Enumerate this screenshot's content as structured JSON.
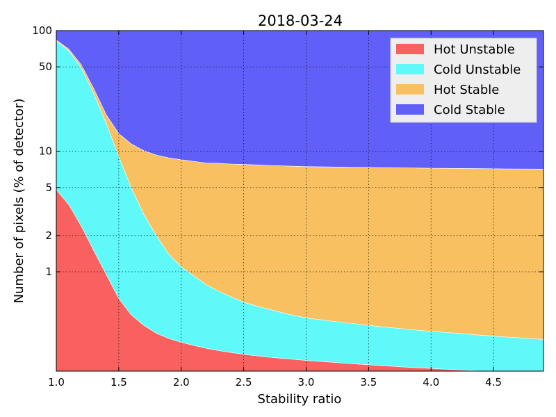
{
  "chart_data": {
    "type": "area",
    "stacked": true,
    "title": "2018-03-24",
    "xlabel": "Stability ratio",
    "ylabel": "Number of pixels (% of detector)",
    "yscale": "log",
    "xlim": [
      1.0,
      4.9
    ],
    "ylim": [
      0.15,
      100
    ],
    "grid": true,
    "legend_position": "top-right",
    "x_ticks": [
      "1.0",
      "1.5",
      "2.0",
      "2.5",
      "3.0",
      "3.5",
      "4.0",
      "4.5"
    ],
    "y_ticks": [
      "1",
      "2",
      "5",
      "10",
      "50",
      "100"
    ],
    "x": [
      1.0,
      1.1,
      1.2,
      1.3,
      1.4,
      1.5,
      1.6,
      1.7,
      1.8,
      1.9,
      2.0,
      2.1,
      2.2,
      2.3,
      2.4,
      2.5,
      2.6,
      2.7,
      2.8,
      2.9,
      3.0,
      3.2,
      3.4,
      3.6,
      3.8,
      4.0,
      4.2,
      4.4,
      4.6,
      4.9
    ],
    "series": [
      {
        "name": "Hot Unstable",
        "color": "#f96060",
        "values": [
          4.8,
          3.6,
          2.4,
          1.5,
          0.95,
          0.6,
          0.44,
          0.36,
          0.31,
          0.28,
          0.26,
          0.245,
          0.232,
          0.222,
          0.214,
          0.207,
          0.201,
          0.196,
          0.192,
          0.188,
          0.184,
          0.178,
          0.172,
          0.167,
          0.162,
          0.158,
          0.154,
          0.15,
          0.146,
          0.14
        ]
      },
      {
        "name": "Cold Unstable",
        "color": "#5ff9f9",
        "values": [
          77.2,
          64.4,
          46.6,
          28.5,
          16.05,
          8.4,
          4.56,
          2.64,
          1.69,
          1.12,
          0.84,
          0.68,
          0.55,
          0.468,
          0.406,
          0.353,
          0.319,
          0.294,
          0.268,
          0.247,
          0.231,
          0.212,
          0.198,
          0.183,
          0.173,
          0.162,
          0.156,
          0.148,
          0.142,
          0.135
        ]
      },
      {
        "name": "Hot Stable",
        "color": "#f8c060",
        "values": [
          1.5,
          2.2,
          3.0,
          3.0,
          3.0,
          5.0,
          6.5,
          7.1,
          7.3,
          7.4,
          7.4,
          7.3,
          7.2,
          7.25,
          7.2,
          7.2,
          7.18,
          7.13,
          7.1,
          7.06,
          7.04,
          7.01,
          6.98,
          6.95,
          6.93,
          6.9,
          6.89,
          6.87,
          6.84,
          6.83
        ]
      },
      {
        "name": "Cold Stable",
        "color": "#6060f9",
        "values": [
          16.5,
          29.8,
          48.0,
          67.0,
          80.0,
          86.0,
          88.5,
          89.9,
          90.7,
          91.2,
          91.5,
          91.775,
          92.018,
          92.06,
          92.18,
          92.24,
          92.3,
          92.38,
          92.44,
          92.505,
          92.545,
          92.6,
          92.65,
          92.703,
          92.735,
          92.78,
          92.8,
          92.832,
          92.872,
          92.895
        ]
      }
    ]
  }
}
